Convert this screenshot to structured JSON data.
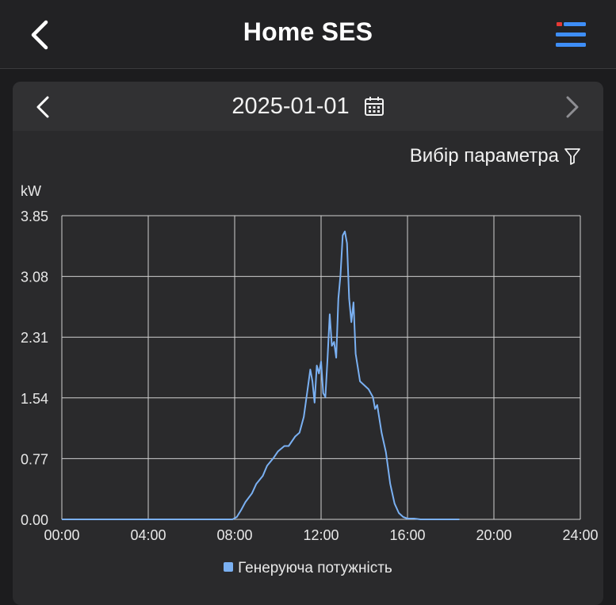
{
  "header": {
    "title": "Home SES"
  },
  "date_nav": {
    "date": "2025-01-01"
  },
  "filter": {
    "label": "Вибір параметра"
  },
  "colors": {
    "accent": "#3e8ef7",
    "series": "#7ab0f2",
    "badge": "#e53935"
  },
  "chart_data": {
    "type": "line",
    "ylabel": "kW",
    "ylim": [
      0,
      3.85
    ],
    "xlim_hours": [
      0,
      24
    ],
    "y_ticks": [
      "0.00",
      "0.77",
      "1.54",
      "2.31",
      "3.08",
      "3.85"
    ],
    "x_ticks": [
      "00:00",
      "04:00",
      "08:00",
      "12:00",
      "16:00",
      "20:00",
      "24:00"
    ],
    "legend_position": "bottom",
    "grid": true,
    "series": [
      {
        "name": "Генеруюча потужність",
        "x": [
          0,
          7.9,
          8.1,
          8.3,
          8.5,
          8.8,
          9.0,
          9.3,
          9.5,
          9.8,
          10.0,
          10.3,
          10.5,
          10.8,
          11.0,
          11.2,
          11.4,
          11.5,
          11.6,
          11.7,
          11.8,
          11.9,
          12.0,
          12.1,
          12.2,
          12.3,
          12.4,
          12.5,
          12.6,
          12.7,
          12.8,
          12.9,
          13.0,
          13.1,
          13.2,
          13.3,
          13.4,
          13.5,
          13.6,
          13.8,
          14.0,
          14.2,
          14.4,
          14.5,
          14.6,
          14.8,
          15.0,
          15.2,
          15.4,
          15.6,
          15.8,
          16.0,
          16.3,
          16.6,
          17.0,
          17.5,
          18.0,
          18.4
        ],
        "values": [
          0,
          0,
          0.03,
          0.12,
          0.22,
          0.33,
          0.45,
          0.55,
          0.68,
          0.78,
          0.86,
          0.93,
          0.93,
          1.05,
          1.1,
          1.3,
          1.7,
          1.9,
          1.75,
          1.48,
          1.95,
          1.85,
          2.0,
          1.6,
          1.55,
          2.05,
          2.6,
          2.2,
          2.25,
          2.05,
          2.8,
          3.1,
          3.6,
          3.65,
          3.5,
          2.8,
          2.5,
          2.75,
          2.1,
          1.75,
          1.7,
          1.65,
          1.55,
          1.4,
          1.45,
          1.1,
          0.85,
          0.45,
          0.2,
          0.08,
          0.03,
          0.01,
          0.01,
          0,
          0,
          0,
          0,
          0
        ]
      }
    ]
  }
}
